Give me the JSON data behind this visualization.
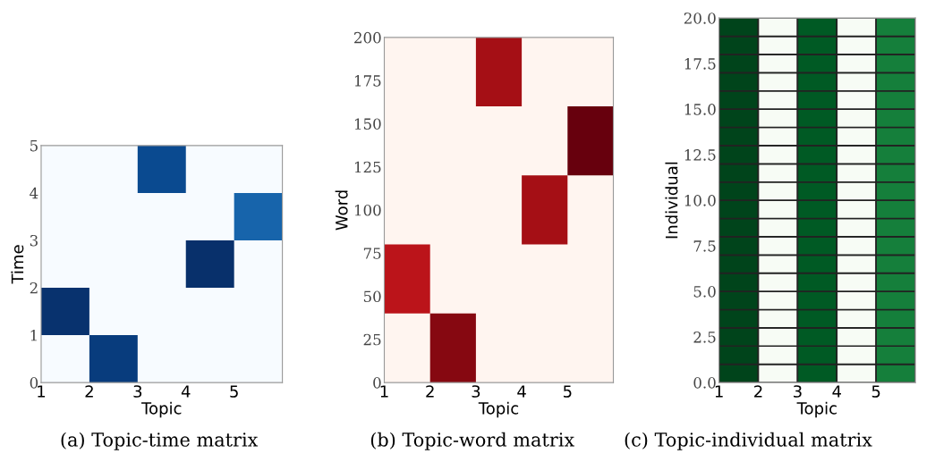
{
  "chart_data": [
    {
      "type": "bar",
      "xlabel": "Topic",
      "ylabel": "Time",
      "annotations": [
        "(a) Topic-time matrix"
      ],
      "xlim": [
        1,
        6
      ],
      "xticks": [
        1,
        2,
        3,
        4,
        5
      ],
      "ylim": [
        0,
        5
      ],
      "yticks": [
        0,
        1,
        2,
        3,
        4,
        5
      ],
      "bands": [
        {
          "axis": "y",
          "from": 0,
          "to": 5,
          "color": "#f7fbff"
        }
      ],
      "x": [
        1.5,
        2.5,
        3.5,
        4.5,
        5.5
      ],
      "base": [
        1,
        0,
        4,
        2,
        3
      ],
      "values": [
        1,
        1,
        1,
        1,
        1
      ],
      "colors": [
        "#08326e",
        "#083c7d",
        "#0a4a90",
        "#08306b",
        "#1764ab"
      ]
    },
    {
      "type": "bar",
      "xlabel": "Topic",
      "ylabel": "Word",
      "annotations": [
        "(b) Topic-word matrix"
      ],
      "xlim": [
        1,
        6
      ],
      "xticks": [
        1,
        2,
        3,
        4,
        5
      ],
      "ylim": [
        0,
        200
      ],
      "yticks": [
        0,
        25,
        50,
        75,
        100,
        125,
        150,
        175,
        200
      ],
      "bands": [
        {
          "axis": "y",
          "from": 0,
          "to": 200,
          "color": "#fff5f0"
        }
      ],
      "x": [
        1.5,
        2.5,
        3.5,
        4.5,
        5.5
      ],
      "base": [
        40,
        0,
        160,
        80,
        120
      ],
      "values": [
        40,
        40,
        40,
        40,
        40
      ],
      "colors": [
        "#bb141a",
        "#860811",
        "#a50f15",
        "#a50f15",
        "#67000d"
      ]
    },
    {
      "type": "bar",
      "stacked": true,
      "xlabel": "Topic",
      "ylabel": "Individual",
      "annotations": [
        "(c) Topic-individual matrix"
      ],
      "xlim": [
        1,
        6
      ],
      "xticks": [
        1,
        2,
        3,
        4,
        5
      ],
      "ylim": [
        0,
        20
      ],
      "yticks": [
        {
          "value": 0,
          "label": "0.0"
        },
        {
          "value": 2.5,
          "label": "2.5"
        },
        {
          "value": 5,
          "label": "5.0"
        },
        {
          "value": 7.5,
          "label": "7.5"
        },
        {
          "value": 10,
          "label": "10.0"
        },
        {
          "value": 12.5,
          "label": "12.5"
        },
        {
          "value": 15,
          "label": "15.0"
        },
        {
          "value": 17.5,
          "label": "17.5"
        },
        {
          "value": 20,
          "label": "20.0"
        }
      ],
      "x": [
        1.5,
        2.5,
        3.5,
        4.5,
        5.5
      ],
      "series": [
        {
          "colors": [
            "#00441b",
            "#f7fcf5",
            "#005a24",
            "#f7fcf5",
            "#157f3b"
          ],
          "values": [
            1,
            1,
            1,
            1,
            1
          ]
        },
        {
          "colors": [
            "#00441b",
            "#f7fcf5",
            "#005a24",
            "#f7fcf5",
            "#157f3b"
          ],
          "values": [
            1,
            1,
            1,
            1,
            1
          ]
        },
        {
          "colors": [
            "#00441b",
            "#f7fcf5",
            "#005a24",
            "#f7fcf5",
            "#157f3b"
          ],
          "values": [
            1,
            1,
            1,
            1,
            1
          ]
        },
        {
          "colors": [
            "#00441b",
            "#f7fcf5",
            "#005a24",
            "#f7fcf5",
            "#157f3b"
          ],
          "values": [
            1,
            1,
            1,
            1,
            1
          ]
        },
        {
          "colors": [
            "#00441b",
            "#f7fcf5",
            "#005a24",
            "#f7fcf5",
            "#157f3b"
          ],
          "values": [
            1,
            1,
            1,
            1,
            1
          ]
        },
        {
          "colors": [
            "#00441b",
            "#f7fcf5",
            "#005a24",
            "#f7fcf5",
            "#157f3b"
          ],
          "values": [
            1,
            1,
            1,
            1,
            1
          ]
        },
        {
          "colors": [
            "#00441b",
            "#f7fcf5",
            "#005a24",
            "#f7fcf5",
            "#157f3b"
          ],
          "values": [
            1,
            1,
            1,
            1,
            1
          ]
        },
        {
          "colors": [
            "#00441b",
            "#f7fcf5",
            "#005a24",
            "#f7fcf5",
            "#157f3b"
          ],
          "values": [
            1,
            1,
            1,
            1,
            1
          ]
        },
        {
          "colors": [
            "#00441b",
            "#f7fcf5",
            "#005a24",
            "#f7fcf5",
            "#157f3b"
          ],
          "values": [
            1,
            1,
            1,
            1,
            1
          ]
        },
        {
          "colors": [
            "#00441b",
            "#f7fcf5",
            "#005a24",
            "#f7fcf5",
            "#157f3b"
          ],
          "values": [
            1,
            1,
            1,
            1,
            1
          ]
        },
        {
          "colors": [
            "#00441b",
            "#f7fcf5",
            "#005a24",
            "#f7fcf5",
            "#157f3b"
          ],
          "values": [
            1,
            1,
            1,
            1,
            1
          ]
        },
        {
          "colors": [
            "#00441b",
            "#f7fcf5",
            "#005a24",
            "#f7fcf5",
            "#157f3b"
          ],
          "values": [
            1,
            1,
            1,
            1,
            1
          ]
        },
        {
          "colors": [
            "#00441b",
            "#f7fcf5",
            "#005a24",
            "#f7fcf5",
            "#157f3b"
          ],
          "values": [
            1,
            1,
            1,
            1,
            1
          ]
        },
        {
          "colors": [
            "#00441b",
            "#f7fcf5",
            "#005a24",
            "#f7fcf5",
            "#157f3b"
          ],
          "values": [
            1,
            1,
            1,
            1,
            1
          ]
        },
        {
          "colors": [
            "#00441b",
            "#f7fcf5",
            "#005a24",
            "#f7fcf5",
            "#157f3b"
          ],
          "values": [
            1,
            1,
            1,
            1,
            1
          ]
        },
        {
          "colors": [
            "#00441b",
            "#f7fcf5",
            "#005a24",
            "#f7fcf5",
            "#157f3b"
          ],
          "values": [
            1,
            1,
            1,
            1,
            1
          ]
        },
        {
          "colors": [
            "#00441b",
            "#f7fcf5",
            "#005a24",
            "#f7fcf5",
            "#157f3b"
          ],
          "values": [
            1,
            1,
            1,
            1,
            1
          ]
        },
        {
          "colors": [
            "#00441b",
            "#f7fcf5",
            "#005a24",
            "#f7fcf5",
            "#157f3b"
          ],
          "values": [
            1,
            1,
            1,
            1,
            1
          ]
        },
        {
          "colors": [
            "#00441b",
            "#f7fcf5",
            "#005a24",
            "#f7fcf5",
            "#157f3b"
          ],
          "values": [
            1,
            1,
            1,
            1,
            1
          ]
        },
        {
          "colors": [
            "#00441b",
            "#f7fcf5",
            "#005a24",
            "#f7fcf5",
            "#157f3b"
          ],
          "values": [
            1,
            1,
            1,
            1,
            1
          ]
        }
      ]
    }
  ]
}
